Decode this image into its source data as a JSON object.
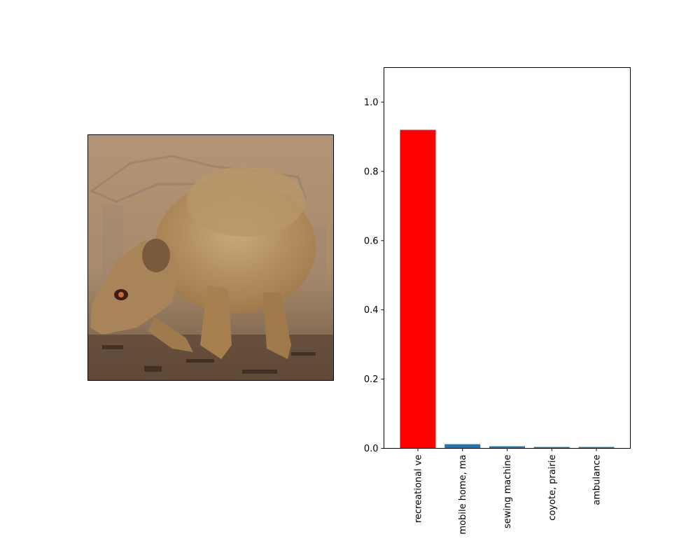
{
  "image_panel": {
    "subject_icon": "mongoose-photo"
  },
  "chart_data": {
    "type": "bar",
    "categories": [
      "recreational ve",
      "mobile home, ma",
      "sewing machine",
      "coyote, prairie",
      "ambulance"
    ],
    "values": [
      0.92,
      0.012,
      0.006,
      0.004,
      0.004
    ],
    "bar_colors": [
      "#ff0000",
      "#1f77b4",
      "#1f77b4",
      "#1f77b4",
      "#1f77b4"
    ],
    "title": "",
    "xlabel": "",
    "ylabel": "",
    "ylim": [
      0,
      1.1
    ],
    "yticks": [
      0.0,
      0.2,
      0.4,
      0.6,
      0.8,
      1.0
    ],
    "ytick_labels": [
      "0.0",
      "0.2",
      "0.4",
      "0.6",
      "0.8",
      "1.0"
    ],
    "grid": false,
    "legend": "none"
  }
}
